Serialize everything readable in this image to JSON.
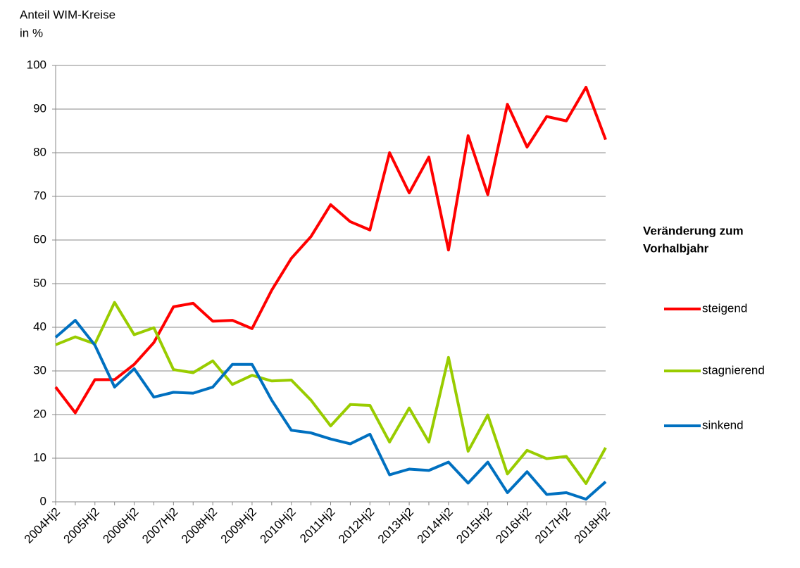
{
  "chart_data": {
    "type": "line",
    "ylabel": [
      "Anteil WIM-Kreise",
      "in %"
    ],
    "categories": [
      "2004Hj2",
      null,
      "2005Hj2",
      null,
      "2006Hj2",
      null,
      "2007Hj2",
      null,
      "2008Hj2",
      null,
      "2009Hj2",
      null,
      "2010Hj2",
      null,
      "2011Hj2",
      null,
      "2012Hj2",
      null,
      "2013Hj2",
      null,
      "2014Hj2",
      null,
      "2015Hj2",
      null,
      "2016Hj2",
      null,
      "2017Hj2",
      null,
      "2018Hj2"
    ],
    "series": [
      {
        "name": "steigend",
        "color": "#ff0000",
        "values": [
          26.3,
          20.4,
          28,
          28,
          31.5,
          36.5,
          44.7,
          45.5,
          41.4,
          41.6,
          39.7,
          48.5,
          55.8,
          60.8,
          68.1,
          64.2,
          62.3,
          80,
          70.8,
          79,
          57.7,
          83.9,
          70.4,
          91.1,
          81.3,
          88.3,
          87.3,
          95,
          83
        ]
      },
      {
        "name": "stagnierend",
        "color": "#99cc00",
        "values": [
          36,
          37.8,
          36.2,
          45.7,
          38.3,
          39.9,
          30.3,
          29.6,
          32.3,
          26.9,
          29,
          27.7,
          27.9,
          23.3,
          17.4,
          22.3,
          22.1,
          13.7,
          21.5,
          13.7,
          33.1,
          11.6,
          19.9,
          6.4,
          11.8,
          9.9,
          10.4,
          4.2,
          12.4
        ]
      },
      {
        "name": "sinkend",
        "color": "#0070c0",
        "values": [
          37.7,
          41.6,
          35.9,
          26.3,
          30.5,
          24,
          25.1,
          24.9,
          26.3,
          31.5,
          31.5,
          23.3,
          16.4,
          15.8,
          14.4,
          13.3,
          15.5,
          6.2,
          7.5,
          7.2,
          9.1,
          4.3,
          9.1,
          2.1,
          6.9,
          1.7,
          2.1,
          0.6,
          4.6
        ]
      }
    ],
    "ylim": [
      0,
      100
    ],
    "yticks": [
      0,
      10,
      20,
      30,
      40,
      50,
      60,
      70,
      80,
      90,
      100
    ],
    "grid": true,
    "legend_title": [
      "Veränderung zum",
      "Vorhalbjahr"
    ],
    "legend": "right"
  }
}
